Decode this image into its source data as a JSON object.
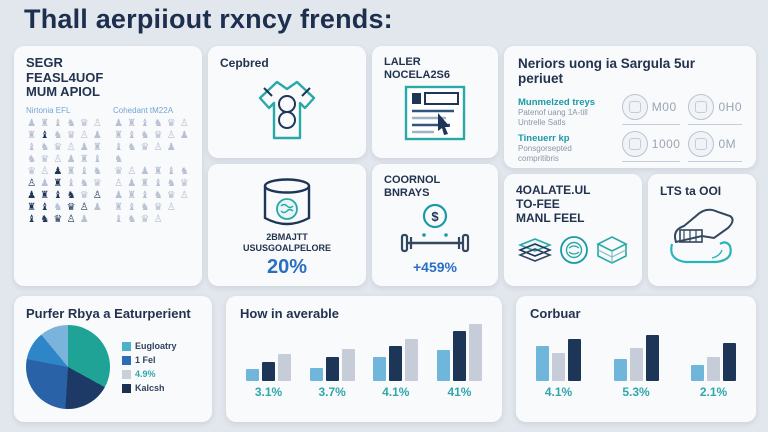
{
  "page": {
    "title": "Thall aerpiiout rxncy frends:"
  },
  "colors": {
    "navy": "#1d3557",
    "teal": "#2aa8a8",
    "blue": "#2b6fc2",
    "picto_light": "#b7c1d2",
    "picto_dark": "#1d3557",
    "bar_lightblue": "#6fb6da",
    "bar_navy": "#1d3557",
    "bar_gray": "#c6cdd9"
  },
  "cards": {
    "demographics": {
      "title_lines": [
        "SEGR",
        "FEASL4UOF",
        "MUM APIOL"
      ],
      "glyphs": [
        "♟",
        "♜",
        "♝",
        "♞",
        "♛",
        "♙"
      ],
      "columns": [
        {
          "label": "Nirtonia EFL",
          "rows": [
            "LLLLLL",
            "LDLLLL",
            "LLLLLL",
            "LLLLLL",
            "LLDLLL",
            "DLDLLL",
            "DDDDLD",
            "DDLDDL",
            "DDDDL."
          ]
        },
        {
          "label": "Cohedant tM22A",
          "rows": [
            "LLLLLL",
            "LLLLLL",
            "LLLLL.",
            "L.....",
            "LLLLLL",
            "LLLLLL",
            "LLLLLL",
            "LLLLL.",
            "LLLL.."
          ]
        }
      ]
    },
    "cepbred": {
      "title": "Cepbred"
    },
    "laler": {
      "title_lines": [
        "LALER",
        "NOCELA2S6"
      ]
    },
    "neriors": {
      "title": "Neriors uong ia Sargula 5ur periuet",
      "sections": [
        {
          "heading": "Munmelzed treys",
          "lines": [
            "Patenof uang 1A-till",
            "Untrelle Satls"
          ]
        },
        {
          "heading": "Tineuerr kp",
          "lines": [
            "Ponsgorsepted",
            "compritibris"
          ]
        }
      ],
      "stats": [
        {
          "value": "M00"
        },
        {
          "value": "0H0"
        },
        {
          "value": "1000"
        },
        {
          "value": "0M"
        }
      ]
    },
    "cup": {
      "lines": [
        "2BMAJTT",
        "USUSGOALPELORE"
      ],
      "value": "20%"
    },
    "coornol": {
      "title_lines": [
        "COORNOL",
        "BNRAYS"
      ],
      "value": "+459%"
    },
    "toffee": {
      "title_lines": [
        "4OALATE.UL",
        "TO-FEE",
        "MANL FEEL"
      ]
    },
    "lts": {
      "title": "LTS ta OOI"
    }
  },
  "chart_data": [
    {
      "type": "pie",
      "title": "Purfer Rbya a Eaturperient",
      "slices": [
        {
          "label": "Eugloatry",
          "value": 33,
          "color": "#1fa396"
        },
        {
          "label": "Kalcsh",
          "value": 18,
          "color": "#1d3a66"
        },
        {
          "label": "1 Fel",
          "value": 27,
          "color": "#2a62a8"
        },
        {
          "label": "",
          "value": 11,
          "color": "#2e86c9"
        },
        {
          "label": "4.9%",
          "value": 11,
          "color": "#7ab4dd"
        }
      ],
      "legend": [
        {
          "label": "Eugloatry",
          "swatch": "#4fb0c9",
          "text_color": "#32435c"
        },
        {
          "label": "1 Fel",
          "swatch": "#2a6fb5",
          "text_color": "#32435c"
        },
        {
          "label": "4.9%",
          "swatch": "#c9d0da",
          "text_color": "#2fa7ad"
        },
        {
          "label": "Kalcsh",
          "swatch": "#1d3050",
          "text_color": "#32435c"
        }
      ],
      "legend_position": "right"
    },
    {
      "type": "bar",
      "title": "How in averable",
      "categories": [
        "3.1%",
        "3.7%",
        "4.1%",
        "41%"
      ],
      "series_colors": [
        "#6fb6da",
        "#1d3557",
        "#c6cdd9"
      ],
      "values": [
        [
          20,
          33,
          47
        ],
        [
          23,
          41,
          55
        ],
        [
          42,
          60,
          73
        ],
        [
          54,
          87,
          98
        ]
      ],
      "ylim": [
        0,
        100
      ],
      "grid": false
    },
    {
      "type": "bar",
      "title": "Corbuar",
      "categories": [
        "4.1%",
        "5.3%",
        "2.1%"
      ],
      "series_colors": [
        "#6fb6da",
        "#c6cdd9",
        "#1d3557"
      ],
      "values": [
        [
          60,
          49,
          72
        ],
        [
          38,
          57,
          80
        ],
        [
          28,
          41,
          65
        ]
      ],
      "ylim": [
        0,
        100
      ],
      "grid": false
    }
  ]
}
